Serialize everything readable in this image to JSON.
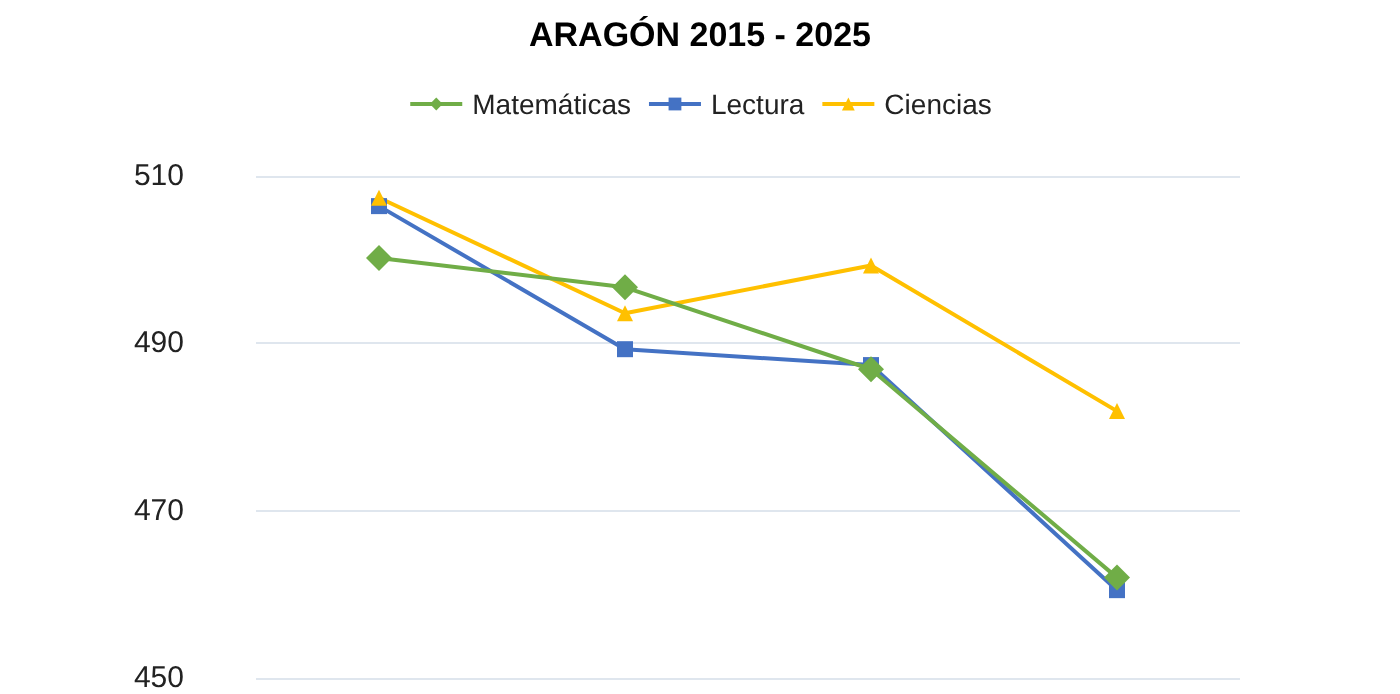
{
  "chart_data": {
    "type": "line",
    "title": "ARAGÓN 2015 - 2025",
    "categories": [
      null,
      null,
      null,
      null
    ],
    "series": [
      {
        "name": "Matemáticas",
        "color": "#70ad47",
        "marker": "diamond",
        "values": [
          500.2,
          496.7,
          486.9,
          462
        ]
      },
      {
        "name": "Lectura",
        "color": "#4472c4",
        "marker": "square",
        "values": [
          506.4,
          489.3,
          487.4,
          460.5
        ]
      },
      {
        "name": "Ciencias",
        "color": "#ffc000",
        "marker": "triangle",
        "values": [
          507.4,
          493.6,
          499.3,
          481.9
        ]
      }
    ],
    "ylim": [
      450,
      510
    ],
    "yticks": [
      450,
      470,
      490,
      510
    ],
    "grid": "y",
    "legend": "top"
  }
}
